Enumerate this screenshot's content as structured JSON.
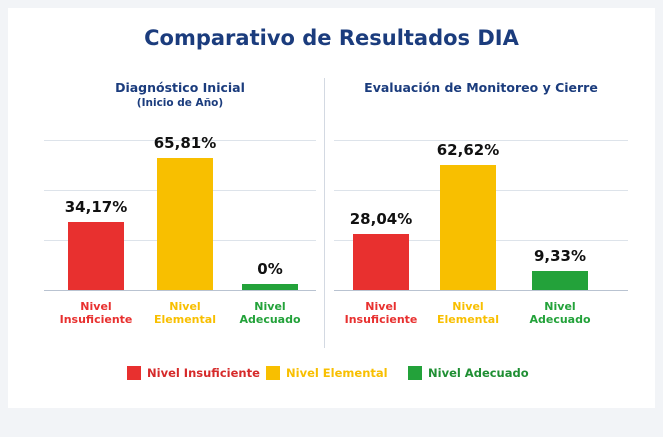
{
  "title": "Comparativo de Resultados DIA",
  "legend": [
    {
      "name": "Nivel Insuficiente",
      "color": "#e8302f"
    },
    {
      "name": "Nivel Elemental",
      "color": "#f8bf00"
    },
    {
      "name": "Nivel Adecuado",
      "color": "#23a23a"
    }
  ],
  "chart_data": [
    {
      "type": "bar",
      "title": "Diagnóstico Inicial",
      "subtitle": "(Inicio de Año)",
      "categories": [
        "Nivel Insuficiente",
        "Nivel Elemental",
        "Nivel Adecuado"
      ],
      "values": [
        34.17,
        65.81,
        0
      ],
      "value_labels": [
        "34,17%",
        "65,81%",
        "0%"
      ],
      "colors": [
        "#e8302f",
        "#f8bf00",
        "#23a23a"
      ],
      "ylim": [
        0,
        100
      ],
      "yticks": [
        0,
        25,
        50,
        75
      ],
      "grid": true
    },
    {
      "type": "bar",
      "title": "Evaluación de Monitoreo y Cierre",
      "categories": [
        "Nivel Insuficiente",
        "Nivel Elemental",
        "Nivel Adecuado"
      ],
      "values": [
        28.04,
        62.62,
        9.33
      ],
      "value_labels": [
        "28,04%",
        "62,62%",
        "9,33%"
      ],
      "colors": [
        "#e8302f",
        "#f8bf00",
        "#23a23a"
      ],
      "ylim": [
        0,
        100
      ],
      "yticks": [
        0,
        25,
        50,
        75
      ],
      "grid": true
    }
  ]
}
